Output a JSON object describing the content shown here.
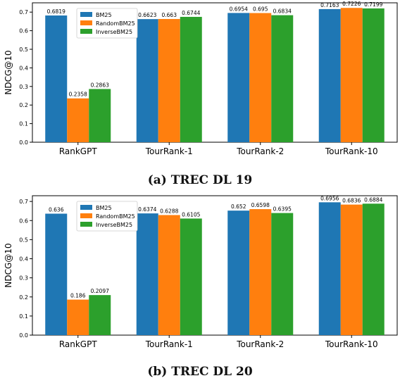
{
  "chart_data": [
    {
      "type": "bar",
      "caption": "(a) TREC DL 19",
      "categories": [
        "RankGPT",
        "TourRank-1",
        "TourRank-2",
        "TourRank-10"
      ],
      "series": [
        {
          "name": "BM25",
          "color": "#1f77b4",
          "values": [
            0.6819,
            0.6623,
            0.6954,
            0.7163
          ],
          "labels": [
            "0.6819",
            "0.6623",
            "0.6954",
            "0.7163"
          ]
        },
        {
          "name": "RandomBM25",
          "color": "#ff7f0e",
          "values": [
            0.2358,
            0.663,
            0.695,
            0.7226
          ],
          "labels": [
            "0.2358",
            "0.663",
            "0.695",
            "0.7226"
          ]
        },
        {
          "name": "InverseBM25",
          "color": "#2ca02c",
          "values": [
            0.2863,
            0.6744,
            0.6834,
            0.7199
          ],
          "labels": [
            "0.2863",
            "0.6744",
            "0.6834",
            "0.7199"
          ]
        }
      ],
      "ylabel": "NDCG@10",
      "ylim": [
        0,
        0.75
      ],
      "yticks": [
        "0.0",
        "0.1",
        "0.2",
        "0.3",
        "0.4",
        "0.5",
        "0.6",
        "0.7"
      ],
      "legend": "top-left",
      "grid": false
    },
    {
      "type": "bar",
      "caption": "(b) TREC DL 20",
      "categories": [
        "RankGPT",
        "TourRank-1",
        "TourRank-2",
        "TourRank-10"
      ],
      "series": [
        {
          "name": "BM25",
          "color": "#1f77b4",
          "values": [
            0.636,
            0.6374,
            0.652,
            0.6956
          ],
          "labels": [
            "0.636",
            "0.6374",
            "0.652",
            "0.6956"
          ]
        },
        {
          "name": "RandomBM25",
          "color": "#ff7f0e",
          "values": [
            0.186,
            0.6288,
            0.6598,
            0.6836
          ],
          "labels": [
            "0.186",
            "0.6288",
            "0.6598",
            "0.6836"
          ]
        },
        {
          "name": "InverseBM25",
          "color": "#2ca02c",
          "values": [
            0.2097,
            0.6105,
            0.6395,
            0.6884
          ],
          "labels": [
            "0.2097",
            "0.6105",
            "0.6395",
            "0.6884"
          ]
        }
      ],
      "ylabel": "NDCG@10",
      "ylim": [
        0,
        0.73
      ],
      "yticks": [
        "0.0",
        "0.1",
        "0.2",
        "0.3",
        "0.4",
        "0.5",
        "0.6",
        "0.7"
      ],
      "legend": "top-left",
      "grid": false
    }
  ]
}
